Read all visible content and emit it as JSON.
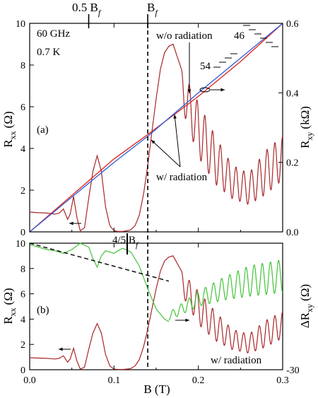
{
  "figure": {
    "top_labels": {
      "half_bf": "0.5 B",
      "half_bf_sub": "f",
      "bf": "B",
      "bf_sub": "f"
    },
    "panel_a": {
      "panel_label": "(a)",
      "frequency": "60 GHz",
      "temperature": "0.7 K",
      "left_axis_label": "R",
      "left_axis_sub": "xx",
      "left_axis_unit": "(Ω)",
      "right_axis_label": "R",
      "right_axis_sub": "xy",
      "right_axis_unit": "(kΩ)",
      "annot_wo_radiation": "w/o radiation",
      "annot_w_radiation": "w/ radiation",
      "annot_46": "46",
      "annot_54": "54"
    },
    "panel_b": {
      "panel_label": "(b)",
      "left_axis_label": "R",
      "left_axis_sub": "xx",
      "left_axis_unit": "(Ω)",
      "right_axis_label": "ΔR",
      "right_axis_sub": "xy",
      "right_axis_unit": "(Ω)",
      "annot_45bf": "4/5 B",
      "annot_45bf_sub": "f",
      "annot_w_radiation": "w/ radiation"
    },
    "x_axis_label": "B (T)",
    "colors": {
      "rxx": "#a8282a",
      "rxy_w": "#e0221c",
      "rxy_wo": "#2b5cd6",
      "delta": "#44c23a",
      "axis": "#000000"
    }
  },
  "chart_data": [
    {
      "type": "line",
      "panel": "a",
      "xlim": [
        0.0,
        0.3
      ],
      "x_ticks": [
        "0.0",
        "0.1",
        "0.2",
        "0.3"
      ],
      "ylim_left": [
        0,
        10
      ],
      "y_ticks_left": [
        "0",
        "2",
        "4",
        "6",
        "8",
        "10"
      ],
      "ylim_right": [
        0.0,
        0.6
      ],
      "y_ticks_right": [
        "0.0",
        "0.2",
        "0.4",
        "0.6"
      ],
      "vertical_marker_x": 0.14,
      "series": [
        {
          "key": "rxx",
          "axis": "left",
          "x": [
            0.0,
            0.01,
            0.02,
            0.03,
            0.035,
            0.04,
            0.045,
            0.048,
            0.052,
            0.056,
            0.06,
            0.065,
            0.07,
            0.075,
            0.08,
            0.085,
            0.09,
            0.095,
            0.1,
            0.105,
            0.11,
            0.115,
            0.12,
            0.125,
            0.13,
            0.135,
            0.14,
            0.145,
            0.15,
            0.155,
            0.16,
            0.165,
            0.17,
            0.175,
            0.18
          ],
          "y": [
            0.95,
            0.92,
            0.9,
            0.85,
            0.9,
            1.1,
            0.6,
            0.85,
            1.7,
            0.7,
            0.05,
            0.2,
            1.6,
            2.9,
            3.65,
            2.9,
            1.2,
            0.3,
            0.05,
            0.02,
            0.02,
            0.05,
            0.1,
            0.3,
            0.8,
            1.8,
            3.2,
            4.8,
            6.4,
            7.8,
            8.6,
            8.9,
            9.0,
            8.4,
            7.8
          ]
        },
        {
          "key": "rxx_oscillating_envelope",
          "axis": "left",
          "envelope_x": [
            0.18,
            0.2,
            0.22,
            0.24,
            0.26,
            0.28,
            0.3
          ],
          "envelope_min": [
            6.0,
            3.6,
            2.3,
            1.6,
            1.3,
            1.8,
            2.5
          ],
          "envelope_max": [
            7.8,
            6.2,
            4.6,
            3.2,
            2.8,
            3.9,
            4.6
          ],
          "oscillations": 13
        },
        {
          "key": "rxy_w",
          "axis": "right",
          "x": [
            0.0,
            0.05,
            0.1,
            0.14,
            0.2,
            0.25,
            0.3
          ],
          "y": [
            0.0,
            0.105,
            0.21,
            0.28,
            0.39,
            0.49,
            0.6
          ]
        },
        {
          "key": "rxy_wo",
          "axis": "right",
          "x": [
            0.0,
            0.05,
            0.1,
            0.14,
            0.2,
            0.25,
            0.3
          ],
          "y": [
            0.0,
            0.1,
            0.2,
            0.275,
            0.4,
            0.5,
            0.6
          ]
        }
      ]
    },
    {
      "type": "line",
      "panel": "b",
      "xlim": [
        0.0,
        0.3
      ],
      "x_ticks": [
        "0.0",
        "0.1",
        "0.2",
        "0.3"
      ],
      "ylim_left": [
        0,
        10
      ],
      "y_ticks_left": [
        "0",
        "2",
        "4",
        "6",
        "8",
        "10"
      ],
      "ylim_right": [
        -30,
        10
      ],
      "y_ticks_right": [
        "-30"
      ],
      "series": [
        {
          "key": "rxx",
          "axis": "left",
          "x": [
            0.0,
            0.01,
            0.02,
            0.03,
            0.035,
            0.04,
            0.045,
            0.048,
            0.052,
            0.056,
            0.06,
            0.065,
            0.07,
            0.075,
            0.08,
            0.085,
            0.09,
            0.095,
            0.1,
            0.105,
            0.11,
            0.115,
            0.12,
            0.125,
            0.13,
            0.135,
            0.14,
            0.145,
            0.15,
            0.155,
            0.16,
            0.165,
            0.17,
            0.175,
            0.18
          ],
          "y": [
            0.95,
            0.92,
            0.9,
            0.85,
            0.9,
            1.1,
            0.6,
            0.85,
            1.7,
            0.7,
            0.05,
            0.2,
            1.6,
            2.9,
            3.65,
            2.9,
            1.2,
            0.3,
            0.05,
            0.02,
            0.02,
            0.05,
            0.1,
            0.3,
            0.8,
            1.8,
            3.2,
            4.8,
            6.4,
            7.8,
            8.6,
            8.9,
            9.0,
            8.4,
            7.8
          ]
        },
        {
          "key": "rxx_oscillating_envelope",
          "axis": "left",
          "envelope_x": [
            0.18,
            0.2,
            0.22,
            0.24,
            0.26,
            0.28,
            0.3
          ],
          "envelope_min": [
            6.0,
            3.6,
            2.3,
            1.6,
            1.3,
            1.8,
            2.5
          ],
          "envelope_max": [
            7.8,
            6.2,
            4.6,
            3.2,
            2.8,
            3.9,
            4.6
          ],
          "oscillations": 13
        },
        {
          "key": "delta_rxy",
          "axis": "left_scale",
          "x": [
            0.0,
            0.02,
            0.03,
            0.04,
            0.05,
            0.06,
            0.07,
            0.075,
            0.08,
            0.085,
            0.09,
            0.1,
            0.11,
            0.12,
            0.13,
            0.14,
            0.15,
            0.16,
            0.165
          ],
          "y": [
            9.9,
            9.5,
            9.4,
            9.2,
            9.5,
            10.0,
            9.7,
            8.8,
            8.1,
            9.0,
            9.4,
            9.2,
            9.6,
            9.3,
            8.2,
            6.4,
            4.8,
            4.0,
            3.8
          ]
        },
        {
          "key": "delta_rxy_oscillating_envelope",
          "axis": "left_scale",
          "envelope_x": [
            0.165,
            0.2,
            0.23,
            0.26,
            0.3
          ],
          "envelope_center": [
            4.2,
            5.6,
            6.4,
            7.0,
            7.4
          ],
          "envelope_half_amp": [
            0.3,
            0.6,
            0.9,
            1.2,
            1.3
          ],
          "oscillations": 14
        },
        {
          "key": "dashed_baseline",
          "axis": "left_scale",
          "x": [
            0.0,
            0.165
          ],
          "y": [
            10.0,
            7.0
          ]
        }
      ]
    }
  ]
}
